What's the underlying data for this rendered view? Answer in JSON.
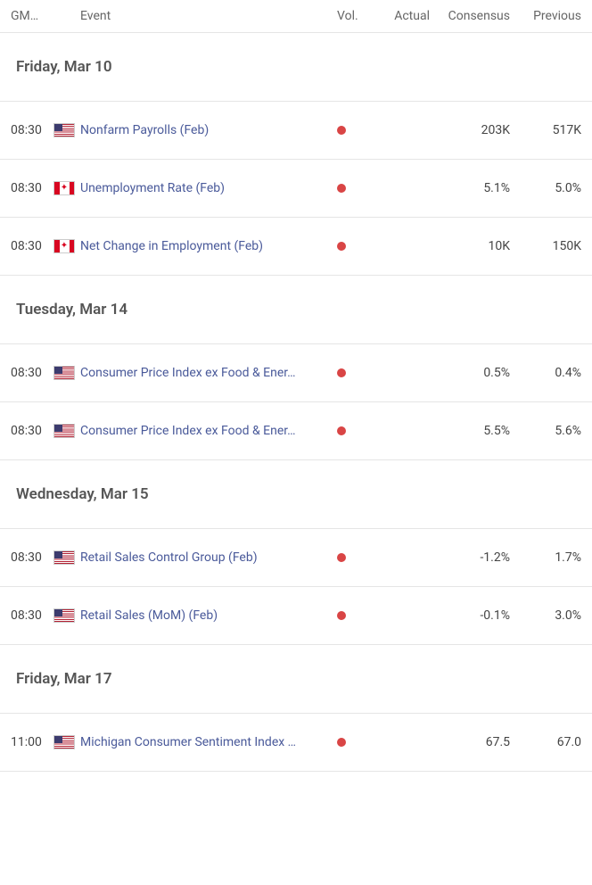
{
  "headers": {
    "time": "GM…",
    "event": "Event",
    "vol": "Vol.",
    "actual": "Actual",
    "consensus": "Consensus",
    "previous": "Previous"
  },
  "colors": {
    "vol_dot": "#d94545",
    "event_link": "#4a5a9a",
    "border": "#e5e5e5"
  },
  "sections": [
    {
      "date": "Friday, Mar 10",
      "events": [
        {
          "time": "08:30",
          "flag": "us",
          "event": "Nonfarm Payrolls (Feb)",
          "vol": "high",
          "actual": "",
          "consensus": "203K",
          "previous": "517K"
        },
        {
          "time": "08:30",
          "flag": "ca",
          "event": "Unemployment Rate (Feb)",
          "vol": "high",
          "actual": "",
          "consensus": "5.1%",
          "previous": "5.0%"
        },
        {
          "time": "08:30",
          "flag": "ca",
          "event": "Net Change in Employment (Feb)",
          "vol": "high",
          "actual": "",
          "consensus": "10K",
          "previous": "150K"
        }
      ]
    },
    {
      "date": "Tuesday, Mar 14",
      "events": [
        {
          "time": "08:30",
          "flag": "us",
          "event": "Consumer Price Index ex Food & Ener…",
          "vol": "high",
          "actual": "",
          "consensus": "0.5%",
          "previous": "0.4%"
        },
        {
          "time": "08:30",
          "flag": "us",
          "event": "Consumer Price Index ex Food & Ener…",
          "vol": "high",
          "actual": "",
          "consensus": "5.5%",
          "previous": "5.6%"
        }
      ]
    },
    {
      "date": "Wednesday, Mar 15",
      "events": [
        {
          "time": "08:30",
          "flag": "us",
          "event": "Retail Sales Control Group (Feb)",
          "vol": "high",
          "actual": "",
          "consensus": "-1.2%",
          "previous": "1.7%"
        },
        {
          "time": "08:30",
          "flag": "us",
          "event": "Retail Sales (MoM) (Feb)",
          "vol": "high",
          "actual": "",
          "consensus": "-0.1%",
          "previous": "3.0%"
        }
      ]
    },
    {
      "date": "Friday, Mar 17",
      "events": [
        {
          "time": "11:00",
          "flag": "us",
          "event": "Michigan Consumer Sentiment Index …",
          "vol": "high",
          "actual": "",
          "consensus": "67.5",
          "previous": "67.0"
        }
      ]
    }
  ]
}
